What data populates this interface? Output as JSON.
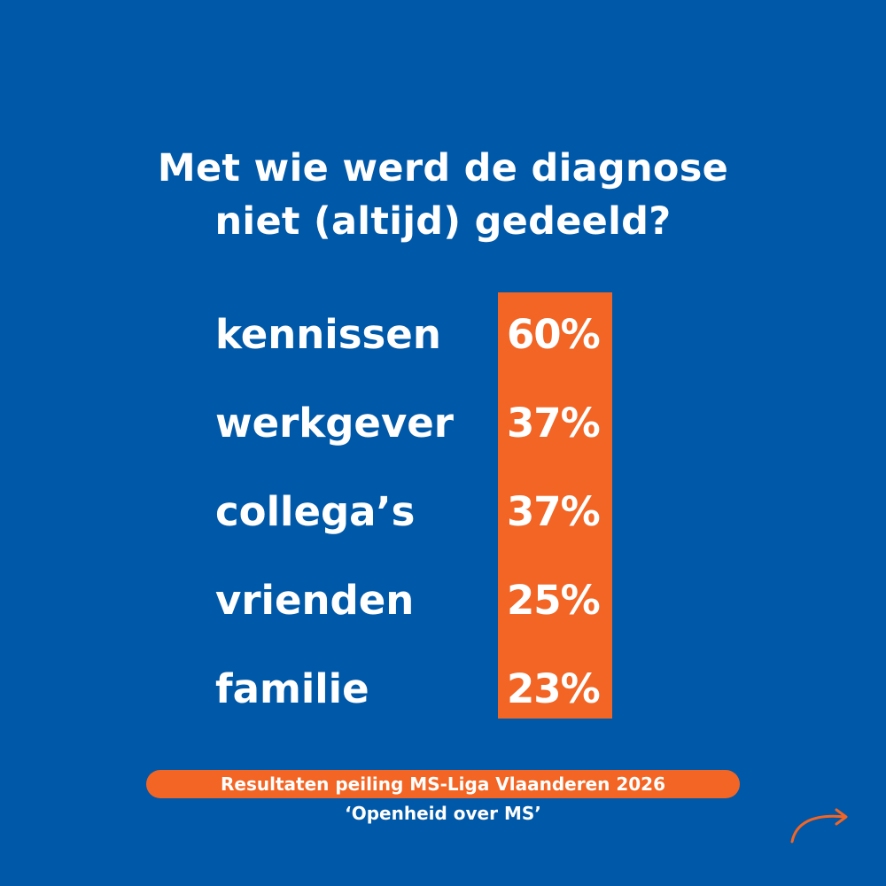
{
  "title": {
    "line1": "Met wie werd de diagnose",
    "line2": "niet (altijd) gedeeld?"
  },
  "results": [
    {
      "label": "kennissen",
      "value": "60%"
    },
    {
      "label": "werkgever",
      "value": "37%"
    },
    {
      "label": "collega’s",
      "value": "37%"
    },
    {
      "label": "vrienden",
      "value": "25%"
    },
    {
      "label": "familie",
      "value": "23%"
    }
  ],
  "footer": {
    "source": "Resultaten peiling MS-Liga Vlaanderen 2026",
    "subtitle": "‘Openheid over MS’"
  },
  "icons": {
    "next": "arrow-right-icon"
  },
  "colors": {
    "background": "#0058A8",
    "accent": "#F26524",
    "text": "#FFFFFF"
  }
}
